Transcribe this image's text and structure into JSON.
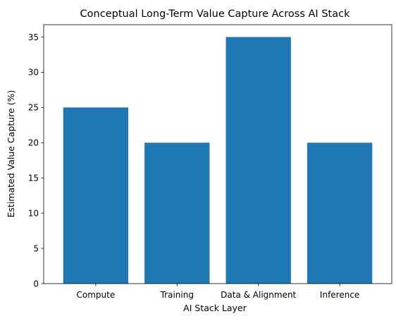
{
  "chart_data": {
    "type": "bar",
    "title": "Conceptual Long-Term Value Capture Across AI Stack",
    "xlabel": "AI Stack Layer",
    "ylabel": "Estimated Value Capture (%)",
    "categories": [
      "Compute",
      "Training",
      "Data & Alignment",
      "Inference"
    ],
    "values": [
      25,
      20,
      35,
      20
    ],
    "ylim": [
      0,
      36.75
    ],
    "yticks": [
      0,
      5,
      10,
      15,
      20,
      25,
      30,
      35
    ],
    "bar_color": "#1f77b4",
    "grid": false,
    "legend": "none"
  }
}
